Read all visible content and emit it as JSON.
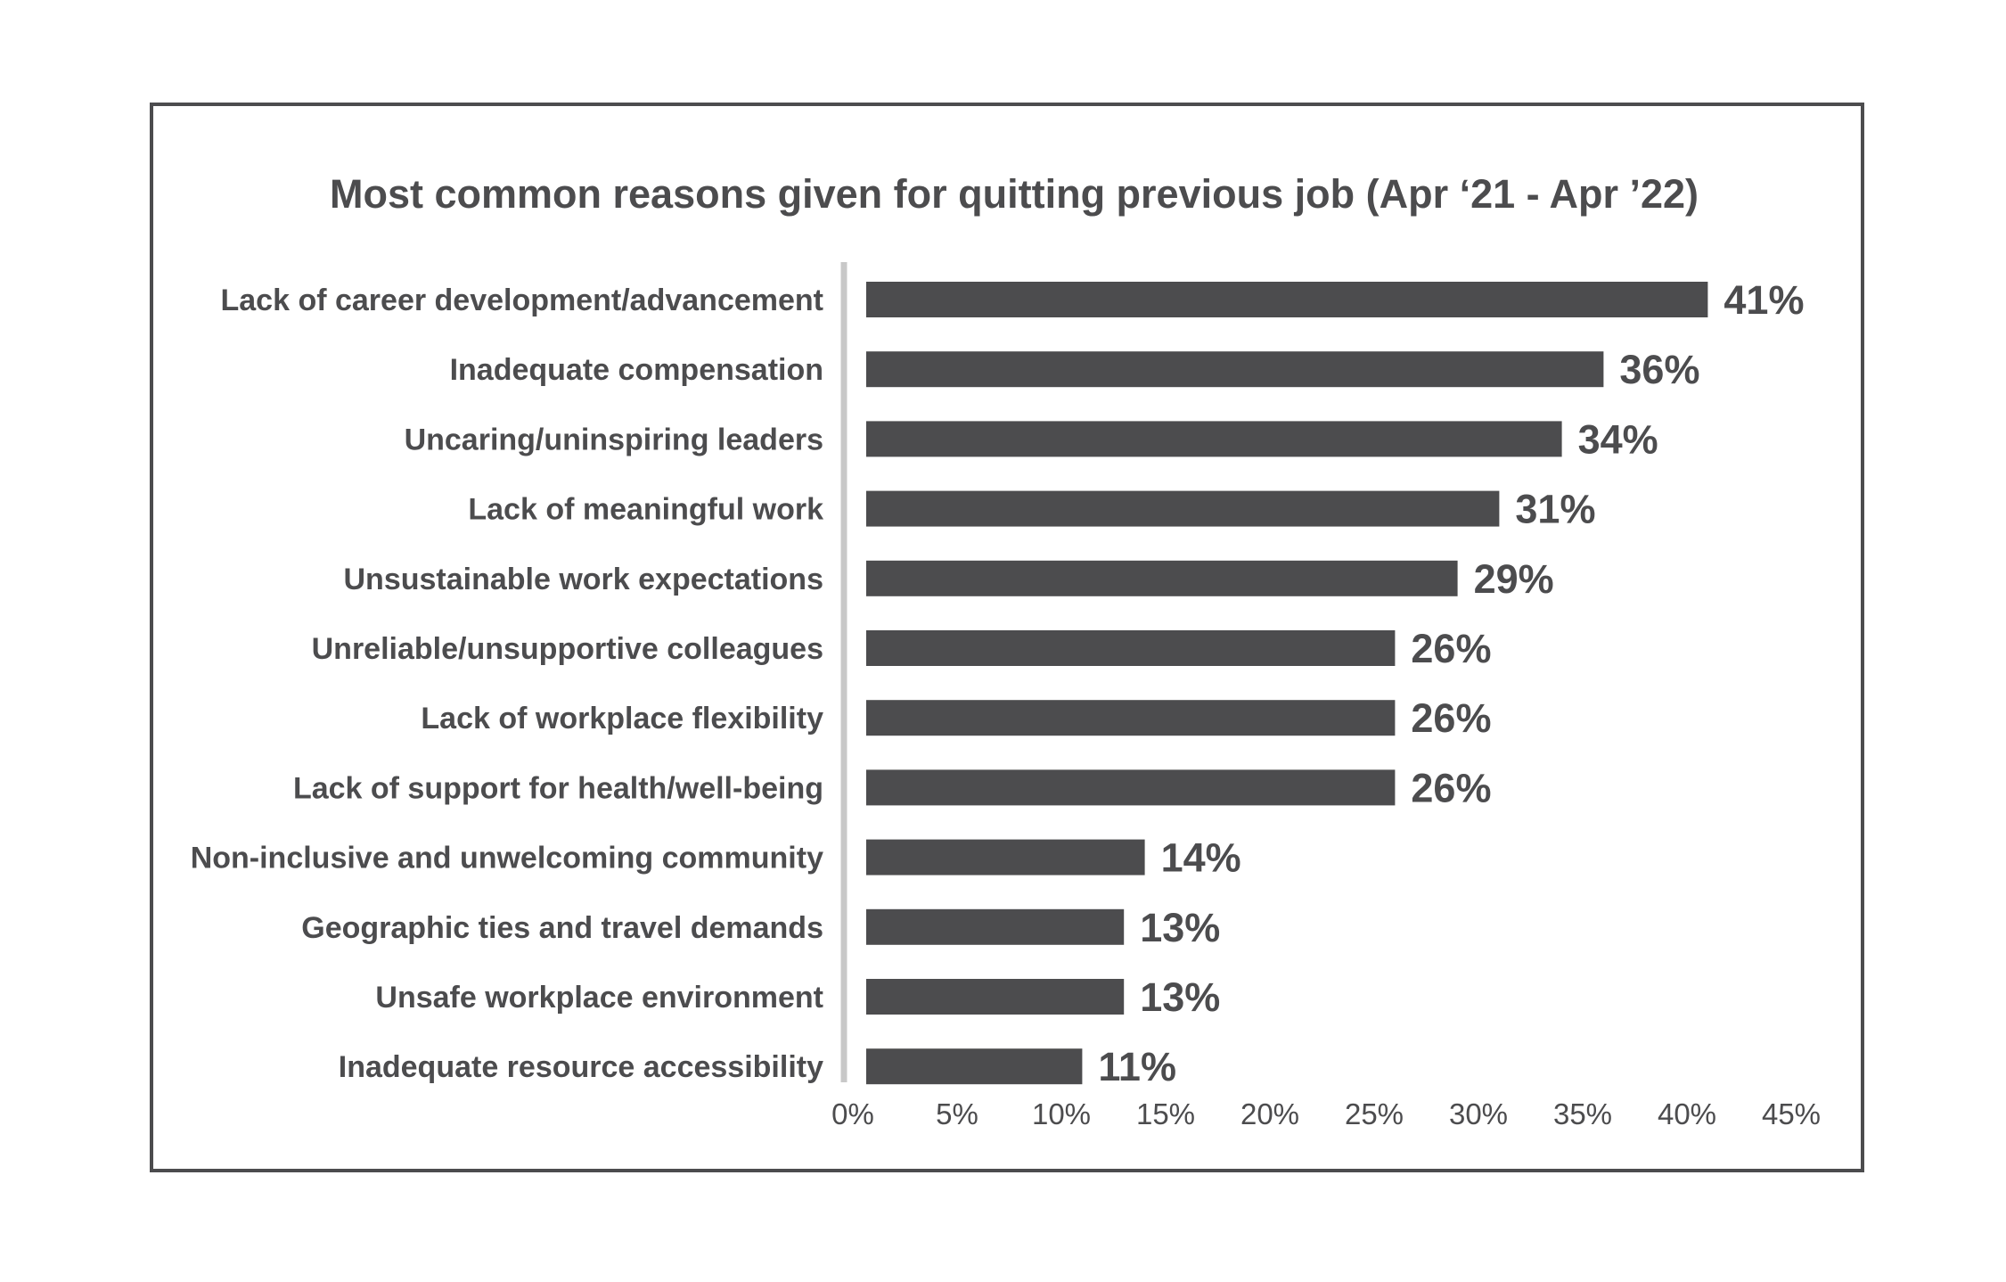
{
  "chart_data": {
    "type": "bar",
    "orientation": "horizontal",
    "title": "Most common reasons given for quitting previous job (Apr ‘21 - Apr ’22)",
    "categories": [
      "Lack of career development/advancement",
      "Inadequate compensation",
      "Uncaring/uninspiring leaders",
      "Lack of meaningful work",
      "Unsustainable work expectations",
      "Unreliable/unsupportive colleagues",
      "Lack of workplace flexibility",
      "Lack of support for health/well-being",
      "Non-inclusive and unwelcoming community",
      "Geographic ties and travel demands",
      "Unsafe workplace environment",
      "Inadequate resource accessibility"
    ],
    "values": [
      41,
      36,
      34,
      31,
      29,
      26,
      26,
      26,
      14,
      13,
      13,
      11
    ],
    "value_labels": [
      "41%",
      "36%",
      "34%",
      "31%",
      "29%",
      "26%",
      "26%",
      "26%",
      "14%",
      "13%",
      "13%",
      "11%"
    ],
    "xlim": [
      0,
      45
    ],
    "x_ticks": [
      0,
      5,
      10,
      15,
      20,
      25,
      30,
      35,
      40,
      45
    ],
    "x_tick_labels": [
      "0%",
      "5%",
      "10%",
      "15%",
      "20%",
      "25%",
      "30%",
      "35%",
      "40%",
      "45%"
    ],
    "xlabel": "",
    "ylabel": "",
    "grid": false,
    "legend": "none",
    "colors": {
      "bar": "#4c4c4e",
      "text": "#4c4c4e",
      "axis": "#c8c8c8",
      "frame": "#4c4c4e"
    }
  }
}
